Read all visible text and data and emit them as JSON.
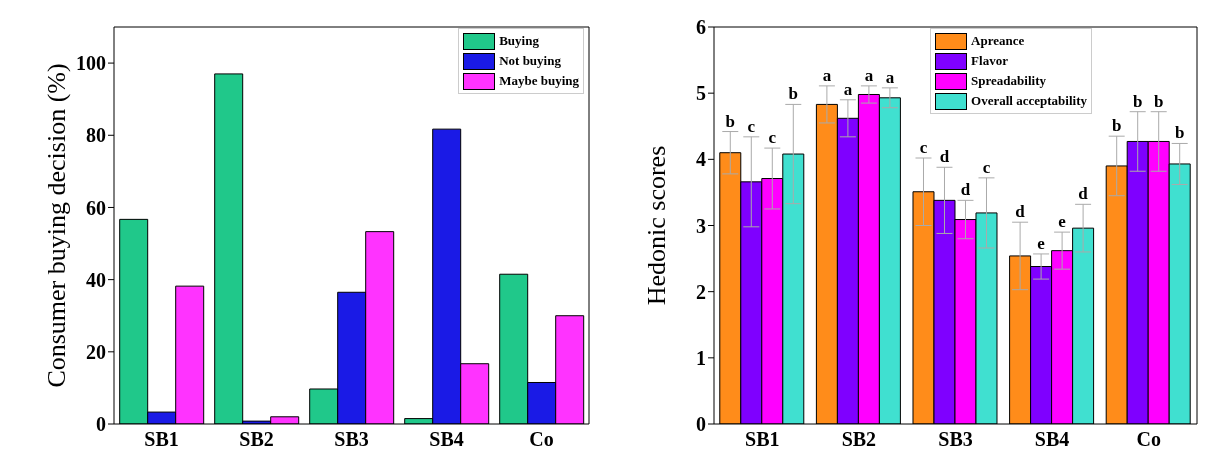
{
  "chart_data": [
    {
      "type": "bar",
      "ylabel": "Consumer buying decision (%)",
      "categories": [
        "SB1",
        "SB2",
        "SB3",
        "SB4",
        "Co"
      ],
      "ylim": [
        0,
        110
      ],
      "yticks": [
        0,
        20,
        40,
        60,
        80,
        100
      ],
      "grid": false,
      "legend": "top right",
      "series": [
        {
          "name": "Buying",
          "color": "#20c88a",
          "values": [
            56.7,
            97,
            9.7,
            1.5,
            41.5
          ]
        },
        {
          "name": "Not buying",
          "color": "#1a1ae6",
          "values": [
            3.3,
            0.8,
            36.5,
            81.7,
            11.5
          ]
        },
        {
          "name": "Maybe buying",
          "color": "#ff33ff",
          "values": [
            38.2,
            2,
            53.3,
            16.7,
            30
          ]
        }
      ]
    },
    {
      "type": "bar",
      "ylabel": "Hedonic scores",
      "categories": [
        "SB1",
        "SB2",
        "SB3",
        "SB4",
        "Co"
      ],
      "ylim": [
        0,
        6
      ],
      "yticks": [
        0,
        1,
        2,
        3,
        4,
        5,
        6
      ],
      "grid": false,
      "legend": "top right",
      "series": [
        {
          "name": "Apreance",
          "color": "#ff8c1a",
          "values": [
            4.1,
            4.83,
            3.51,
            2.54,
            3.9
          ],
          "errors": [
            0.32,
            0.28,
            0.51,
            0.51,
            0.45
          ],
          "value_labels": [
            "b",
            "a",
            "c",
            "d",
            "b"
          ]
        },
        {
          "name": "Flavor",
          "color": "#7f00ff",
          "values": [
            3.66,
            4.62,
            3.38,
            2.38,
            4.27
          ],
          "errors": [
            0.68,
            0.28,
            0.5,
            0.19,
            0.45
          ],
          "value_labels": [
            "c",
            "a",
            "d",
            "e",
            "b"
          ]
        },
        {
          "name": "Spreadability",
          "color": "#ff00ff",
          "values": [
            3.71,
            4.98,
            3.09,
            2.62,
            4.27
          ],
          "errors": [
            0.46,
            0.13,
            0.29,
            0.28,
            0.45
          ],
          "value_labels": [
            "c",
            "a",
            "d",
            "e",
            "b"
          ]
        },
        {
          "name": "Overall acceptability",
          "color": "#40e0d0",
          "values": [
            4.08,
            4.93,
            3.19,
            2.96,
            3.93
          ],
          "errors": [
            0.75,
            0.15,
            0.53,
            0.36,
            0.31
          ],
          "value_labels": [
            "b",
            "a",
            "c",
            "d",
            "b"
          ]
        }
      ]
    }
  ]
}
